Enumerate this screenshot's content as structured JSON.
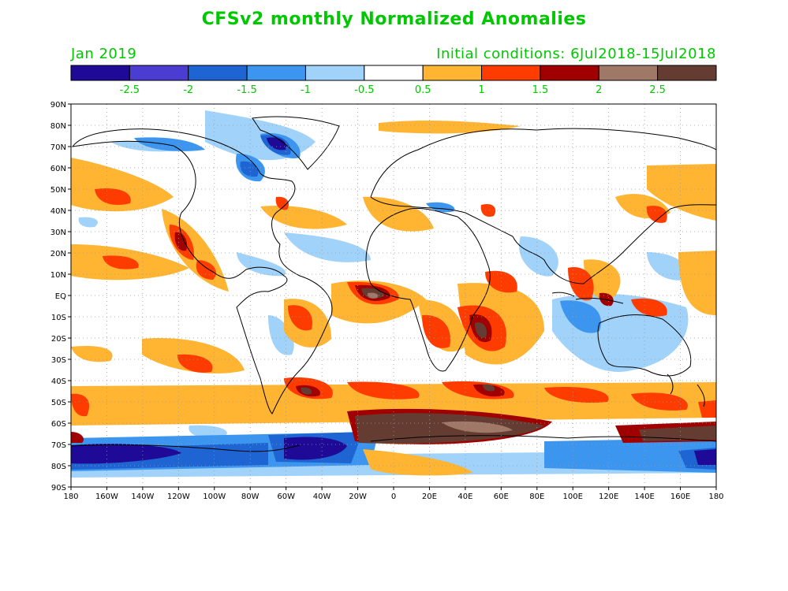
{
  "title": "CFSv2 monthly Normalized Anomalies",
  "valid_month": "Jan 2019",
  "initial_conditions": "Initial conditions: 6Jul2018-15Jul2018",
  "colors": {
    "text": "#00c800",
    "land_line": "#000000",
    "grid": "#9a9a9a"
  },
  "colorbar": {
    "colors": [
      "#1e0a96",
      "#4b3cd2",
      "#1e64d2",
      "#3c96f0",
      "#a0d2fa",
      "#ffffff",
      "#ffb432",
      "#ff3c00",
      "#a00000",
      "#a07868",
      "#643c32"
    ],
    "labels": [
      "-2.5",
      "-2",
      "-1.5",
      "-1",
      "-0.5",
      "0.5",
      "1",
      "1.5",
      "2",
      "2.5"
    ]
  },
  "map": {
    "lat_labels": [
      "90N",
      "80N",
      "70N",
      "60N",
      "50N",
      "40N",
      "30N",
      "20N",
      "10N",
      "EQ",
      "10S",
      "20S",
      "30S",
      "40S",
      "50S",
      "60S",
      "70S",
      "80S",
      "90S"
    ],
    "lon_labels": [
      "180",
      "160W",
      "140W",
      "120W",
      "100W",
      "80W",
      "60W",
      "40W",
      "20W",
      "0",
      "20E",
      "40E",
      "60E",
      "80E",
      "100E",
      "120E",
      "140E",
      "160E",
      "180"
    ]
  }
}
